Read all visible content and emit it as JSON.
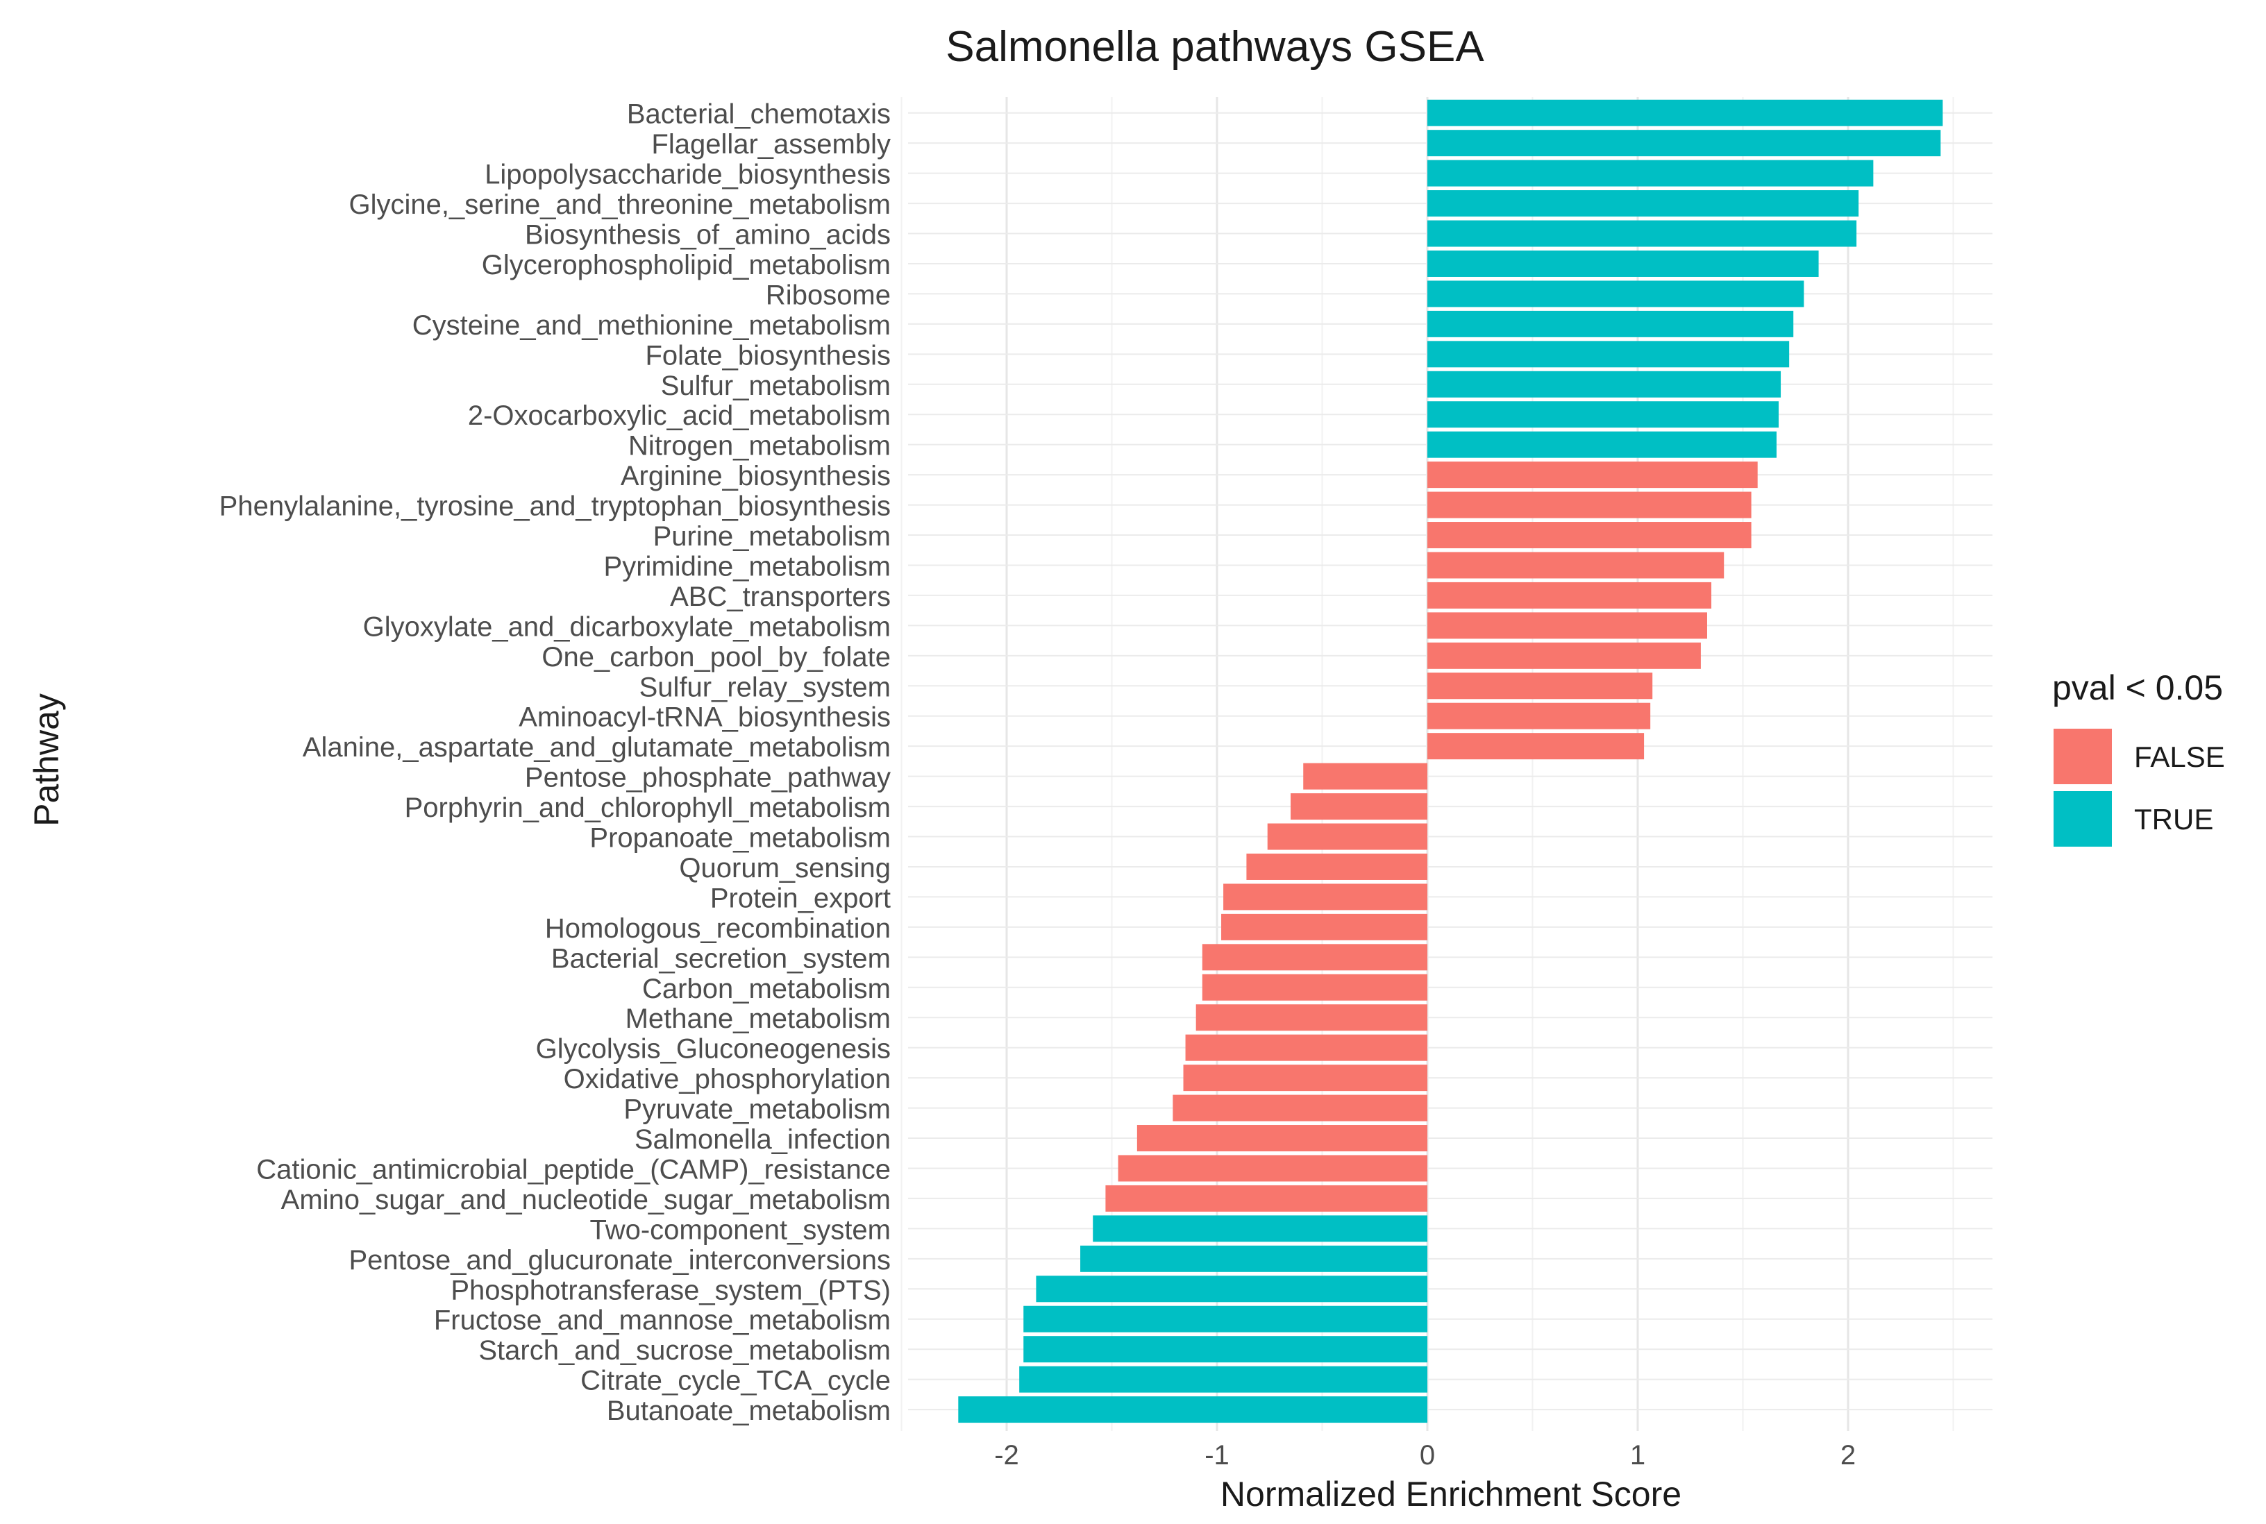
{
  "chart_data": {
    "type": "bar",
    "orientation": "horizontal",
    "title": "Salmonella pathways GSEA",
    "xlabel": "Normalized Enrichment Score",
    "ylabel": "Pathway",
    "xlim": [
      -2.5,
      2.7
    ],
    "xticks": [
      -2,
      -1,
      0,
      1,
      2
    ],
    "xtick_labels": [
      "-2",
      "-1",
      "0",
      "1",
      "2"
    ],
    "grid": true,
    "legend": {
      "title": "pval < 0.05",
      "position": "right",
      "entries": [
        {
          "label": "FALSE",
          "color": "#F8766D"
        },
        {
          "label": "TRUE",
          "color": "#00BFC4"
        }
      ]
    },
    "colors": {
      "FALSE": "#F8766D",
      "TRUE": "#00BFC4"
    },
    "categories": [
      "Bacterial_chemotaxis",
      "Flagellar_assembly",
      "Lipopolysaccharide_biosynthesis",
      "Glycine,_serine_and_threonine_metabolism",
      "Biosynthesis_of_amino_acids",
      "Glycerophospholipid_metabolism",
      "Ribosome",
      "Cysteine_and_methionine_metabolism",
      "Folate_biosynthesis",
      "Sulfur_metabolism",
      "2-Oxocarboxylic_acid_metabolism",
      "Nitrogen_metabolism",
      "Arginine_biosynthesis",
      "Phenylalanine,_tyrosine_and_tryptophan_biosynthesis",
      "Purine_metabolism",
      "Pyrimidine_metabolism",
      "ABC_transporters",
      "Glyoxylate_and_dicarboxylate_metabolism",
      "One_carbon_pool_by_folate",
      "Sulfur_relay_system",
      "Aminoacyl-tRNA_biosynthesis",
      "Alanine,_aspartate_and_glutamate_metabolism",
      "Pentose_phosphate_pathway",
      "Porphyrin_and_chlorophyll_metabolism",
      "Propanoate_metabolism",
      "Quorum_sensing",
      "Protein_export",
      "Homologous_recombination",
      "Bacterial_secretion_system",
      "Carbon_metabolism",
      "Methane_metabolism",
      "Glycolysis_Gluconeogenesis",
      "Oxidative_phosphorylation",
      "Pyruvate_metabolism",
      "Salmonella_infection",
      "Cationic_antimicrobial_peptide_(CAMP)_resistance",
      "Amino_sugar_and_nucleotide_sugar_metabolism",
      "Two-component_system",
      "Pentose_and_glucuronate_interconversions",
      "Phosphotransferase_system_(PTS)",
      "Fructose_and_mannose_metabolism",
      "Starch_and_sucrose_metabolism",
      "Citrate_cycle_TCA_cycle",
      "Butanoate_metabolism"
    ],
    "values": [
      2.45,
      2.44,
      2.12,
      2.05,
      2.04,
      1.86,
      1.79,
      1.74,
      1.72,
      1.68,
      1.67,
      1.66,
      1.57,
      1.54,
      1.54,
      1.41,
      1.35,
      1.33,
      1.3,
      1.07,
      1.06,
      1.03,
      -0.59,
      -0.65,
      -0.76,
      -0.86,
      -0.97,
      -0.98,
      -1.07,
      -1.07,
      -1.1,
      -1.15,
      -1.16,
      -1.21,
      -1.38,
      -1.47,
      -1.53,
      -1.59,
      -1.65,
      -1.86,
      -1.92,
      -1.92,
      -1.94,
      -2.23
    ],
    "significant": [
      true,
      true,
      true,
      true,
      true,
      true,
      true,
      true,
      true,
      true,
      true,
      true,
      false,
      false,
      false,
      false,
      false,
      false,
      false,
      false,
      false,
      false,
      false,
      false,
      false,
      false,
      false,
      false,
      false,
      false,
      false,
      false,
      false,
      false,
      false,
      false,
      false,
      true,
      true,
      true,
      true,
      true,
      true,
      true
    ]
  }
}
